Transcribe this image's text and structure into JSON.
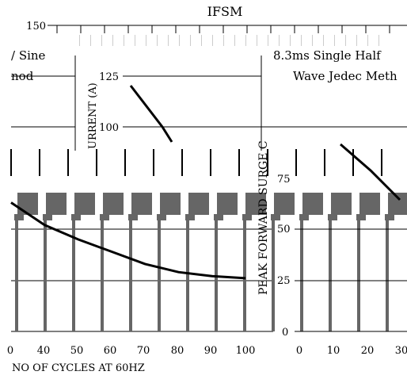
{
  "chart_data": [
    {
      "type": "line",
      "title": "IFSM",
      "xlabel": "NO. OF CYCLES AT 60HZ",
      "ylabel": "PEAK FORWARD SURGE CURRENT (A)",
      "x_ticks": [
        "0",
        "10",
        "20",
        "30",
        "40",
        "50",
        "60",
        "70",
        "80",
        "90",
        "100"
      ],
      "y_ticks": [
        "0",
        "25",
        "50",
        "75",
        "100",
        "125",
        "150"
      ],
      "ylim": [
        0,
        150
      ],
      "xlim": [
        0,
        100
      ],
      "legend_lines": [
        "8.3ms Single Half Sine",
        "Wave Jedec Method"
      ],
      "grid": true,
      "series": [
        {
          "x": [
            30,
            40,
            50,
            60,
            70,
            80,
            90,
            100
          ],
          "y": [
            63,
            52,
            45,
            39,
            33,
            29,
            27,
            26
          ]
        }
      ]
    },
    {
      "type": "line",
      "title": "",
      "xlabel": "",
      "ylabel": "PEAK FORWARD SURGE CURRENT (A)",
      "x_ticks": [
        "0",
        "10",
        "20",
        "30"
      ],
      "y_ticks": [
        "0",
        "25",
        "50",
        "75",
        "100",
        "125"
      ],
      "ylim": [
        0,
        125
      ],
      "xlim": [
        0,
        30
      ],
      "legend_lines": [
        "8.3ms Single Half",
        "Wave Jedec Method"
      ],
      "grid": true,
      "series": [
        {
          "x": [
            0,
            10,
            20
          ],
          "y": [
            120,
            100,
            75
          ]
        }
      ]
    }
  ],
  "fragments": {
    "top_y_tick": "150",
    "upper_y_ticks": [
      "125",
      "100"
    ],
    "upper_ylabel_fragment": "URRENT (A)",
    "left_legend_1": "/ Sine",
    "left_legend_2": "nod",
    "right_legend_1": "8.3ms Single Half",
    "right_legend_2": "Wave Jedec Meth",
    "mid_ylabel_fragment": "PEAK FORWARD SURGE C",
    "mid_y_ticks": [
      "75",
      "50",
      "25",
      "0"
    ],
    "lower_x_ticks": [
      "0",
      "40",
      "50",
      "60",
      "70",
      "80",
      "90",
      "100"
    ],
    "right_x_ticks": [
      "0",
      "10",
      "20",
      "30"
    ],
    "xlabel_fragment": "NO OF CYCLES AT 60HZ"
  }
}
